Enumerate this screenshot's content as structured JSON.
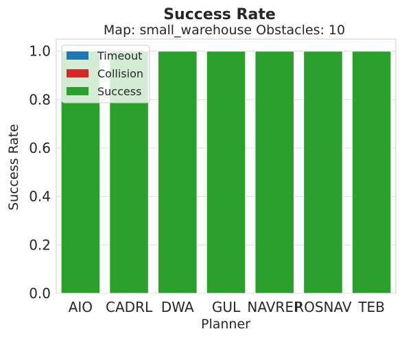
{
  "chart_data": {
    "type": "bar",
    "title": "Success Rate",
    "subtitle": "Map: small_warehouse Obstacles: 10",
    "xlabel": "Planner",
    "ylabel": "Success Rate",
    "ylim": [
      0,
      1.05
    ],
    "yticks": [
      "0.0",
      "0.2",
      "0.4",
      "0.6",
      "0.8",
      "1.0"
    ],
    "ytick_values": [
      0,
      0.2,
      0.4,
      0.6,
      0.8,
      1.0
    ],
    "categories": [
      "AIO",
      "CADRL",
      "DWA",
      "GUL",
      "NAVREP",
      "ROSNAV",
      "TEB"
    ],
    "stacked": true,
    "grid": true,
    "legend_position": "top-left",
    "series": [
      {
        "name": "Timeout",
        "color": "#1f77b4",
        "values": [
          0,
          0,
          0,
          0,
          0,
          0,
          0
        ]
      },
      {
        "name": "Collision",
        "color": "#d62728",
        "values": [
          0,
          0,
          0,
          0,
          0,
          0,
          0
        ]
      },
      {
        "name": "Success",
        "color": "#2ca02c",
        "values": [
          1.0,
          1.0,
          1.0,
          1.0,
          1.0,
          1.0,
          1.0
        ]
      }
    ]
  }
}
